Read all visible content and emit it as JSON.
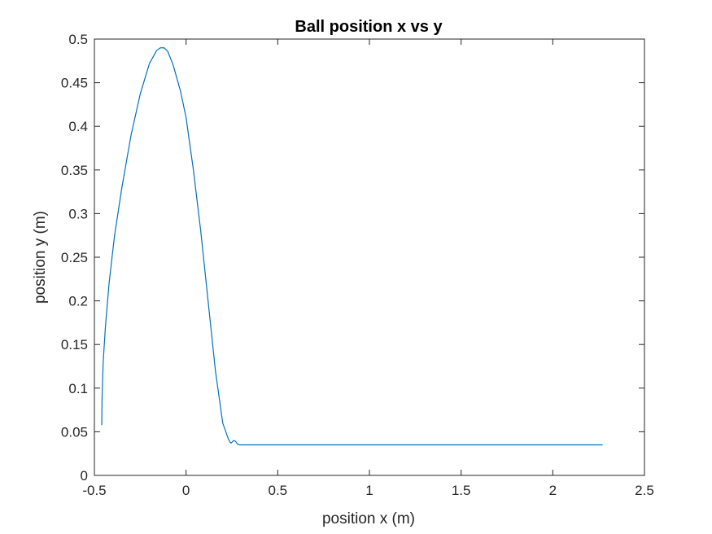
{
  "chart_data": {
    "type": "line",
    "title": "Ball position x vs y",
    "xlabel": "position x (m)",
    "ylabel": "position y (m)",
    "xlim": [
      -0.5,
      2.5
    ],
    "ylim": [
      0,
      0.5
    ],
    "xticks": [
      -0.5,
      0,
      0.5,
      1,
      1.5,
      2,
      2.5
    ],
    "yticks": [
      0,
      0.05,
      0.1,
      0.15,
      0.2,
      0.25,
      0.3,
      0.35,
      0.4,
      0.45,
      0.5
    ],
    "xtick_labels": [
      "-0.5",
      "0",
      "0.5",
      "1",
      "1.5",
      "2",
      "2.5"
    ],
    "ytick_labels": [
      "0",
      "0.05",
      "0.1",
      "0.15",
      "0.2",
      "0.25",
      "0.3",
      "0.35",
      "0.4",
      "0.45",
      "0.5"
    ],
    "grid": false,
    "box": true,
    "series": [
      {
        "color": "#0072BD",
        "x": [
          -0.46,
          -0.458,
          -0.452,
          -0.44,
          -0.42,
          -0.39,
          -0.35,
          -0.3,
          -0.25,
          -0.2,
          -0.16,
          -0.14,
          -0.13,
          -0.12,
          -0.1,
          -0.07,
          -0.03,
          0.0,
          0.04,
          0.08,
          0.12,
          0.16,
          0.2,
          0.23,
          0.24,
          0.245,
          0.25,
          0.26,
          0.27,
          0.28,
          0.29,
          0.3,
          0.5,
          1.0,
          1.5,
          1.9,
          2.0,
          2.27
        ],
        "y": [
          0.058,
          0.09,
          0.13,
          0.17,
          0.22,
          0.275,
          0.33,
          0.39,
          0.437,
          0.472,
          0.487,
          0.49,
          0.49,
          0.49,
          0.486,
          0.47,
          0.44,
          0.41,
          0.35,
          0.28,
          0.2,
          0.12,
          0.06,
          0.042,
          0.038,
          0.037,
          0.038,
          0.04,
          0.039,
          0.036,
          0.035,
          0.035,
          0.035,
          0.035,
          0.035,
          0.035,
          0.035,
          0.035
        ]
      }
    ]
  }
}
